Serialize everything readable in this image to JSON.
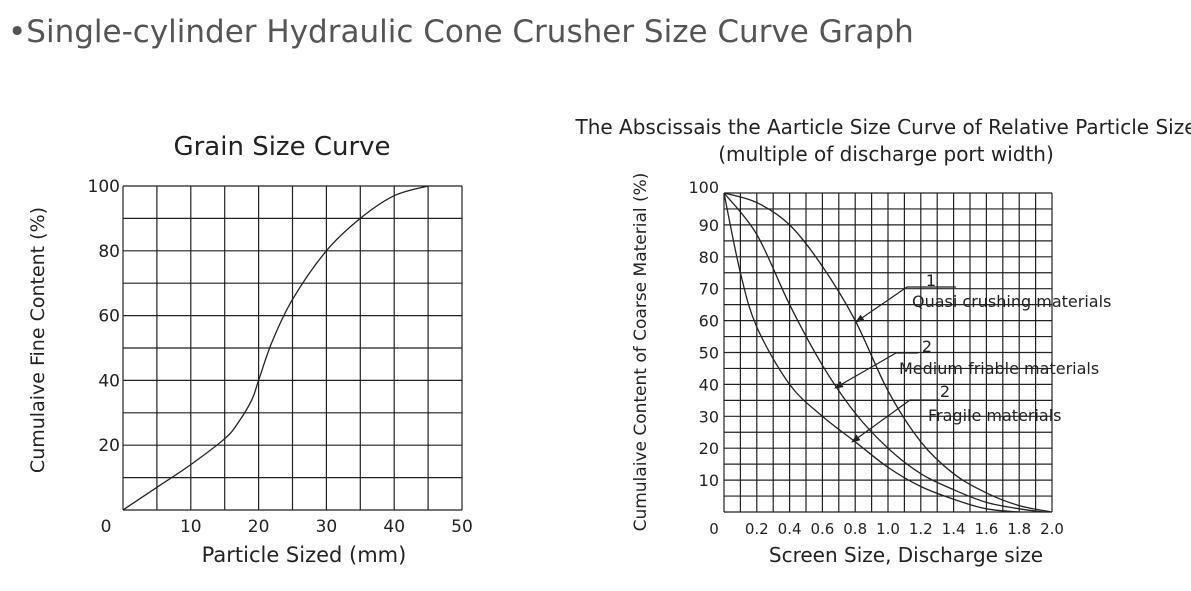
{
  "page": {
    "title": "•Single-cylinder Hydraulic Cone Crusher Size Curve Graph"
  },
  "chart_data": [
    {
      "type": "line",
      "title": "Grain Size Curve",
      "xlabel": "Particle Sized (mm)",
      "ylabel": "Cumulaive Fine Content (%)",
      "xlim": [
        0,
        50
      ],
      "ylim": [
        0,
        100
      ],
      "x_ticks": [
        "0",
        "10",
        "20",
        "30",
        "40",
        "50"
      ],
      "y_ticks": [
        "20",
        "40",
        "60",
        "80",
        "100"
      ],
      "grid": true,
      "series": [
        {
          "x": [
            0,
            5,
            10,
            15,
            17,
            19,
            20,
            22,
            25,
            30,
            35,
            40,
            45
          ],
          "y": [
            0,
            7,
            14,
            22,
            27,
            34,
            40,
            52,
            65,
            80,
            90,
            97,
            100
          ]
        }
      ]
    },
    {
      "type": "line",
      "title": "The Abscissais the Aarticle Size Curve of Relative Particle Size",
      "subtitle": "(multiple of discharge port width)",
      "xlabel": "Screen Size, Discharge size",
      "ylabel": "Cumulaive Content of Coarse Material (%)",
      "xlim": [
        0,
        2.0
      ],
      "ylim": [
        0,
        100
      ],
      "x_ticks": [
        "0",
        "0.2",
        "0.4",
        "0.6",
        "0.8",
        "1.0",
        "1.2",
        "1.4",
        "1.6",
        "1.8",
        "2.0"
      ],
      "y_ticks": [
        "10",
        "20",
        "30",
        "40",
        "50",
        "60",
        "70",
        "80",
        "90",
        "100"
      ],
      "grid": true,
      "series": [
        {
          "name": "Quasi crushing materials",
          "x": [
            0,
            0.2,
            0.4,
            0.6,
            0.8,
            1.0,
            1.2,
            1.4,
            1.6,
            1.8,
            2.0
          ],
          "y": [
            100,
            97,
            90,
            77,
            60,
            38,
            22,
            12,
            6,
            2,
            0
          ]
        },
        {
          "name": "Medium friable materials",
          "x": [
            0,
            0.2,
            0.4,
            0.6,
            0.8,
            1.0,
            1.2,
            1.4,
            1.6,
            1.8,
            1.95
          ],
          "y": [
            100,
            87,
            65,
            46,
            31,
            20,
            12,
            7,
            3,
            1,
            0
          ]
        },
        {
          "name": "Fragile materials",
          "x": [
            0,
            0.1,
            0.2,
            0.4,
            0.6,
            0.8,
            1.0,
            1.2,
            1.4,
            1.6,
            1.8
          ],
          "y": [
            100,
            75,
            58,
            40,
            30,
            22,
            14,
            8,
            4,
            1,
            0
          ]
        }
      ],
      "annotations": [
        {
          "number": "1",
          "label": "Quasi crushing materials"
        },
        {
          "number": "2",
          "label": "Medium friable materials"
        },
        {
          "number": "2",
          "label": "Fragile materials"
        }
      ]
    }
  ]
}
